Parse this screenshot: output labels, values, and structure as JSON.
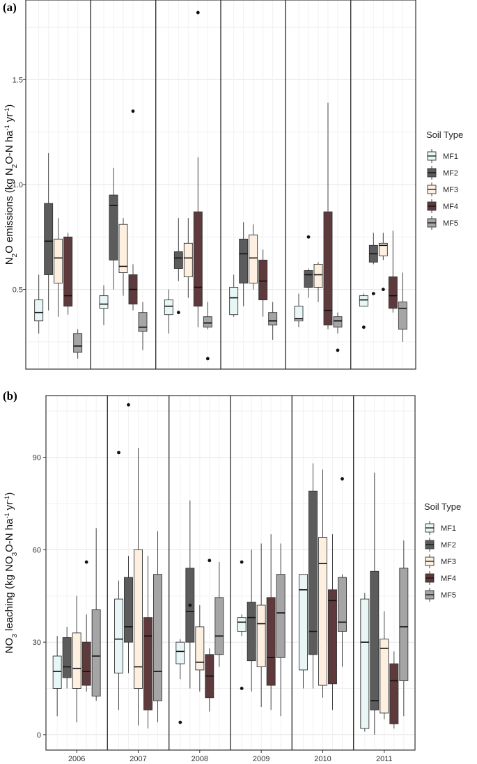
{
  "chart_data": [
    {
      "type": "boxplot",
      "panel_label": "(a)",
      "ylabel_parts": [
        "N",
        "2",
        "O emissions (kg N",
        "2",
        "O-N ha",
        "-1",
        " yr",
        "-1",
        ")"
      ],
      "ylim": [
        0.12,
        1.88
      ],
      "yticks": [
        "0.5",
        "1.0",
        "1.5"
      ],
      "ytick_values": [
        0.5,
        1.0,
        1.5
      ],
      "categories": [
        "2006",
        "2007",
        "2008",
        "2009",
        "2010",
        "2011"
      ],
      "legend": {
        "title": "Soil Type",
        "entries": [
          "MF1",
          "MF2",
          "MF3",
          "MF4",
          "MF5"
        ]
      },
      "series": [
        {
          "name": "MF1",
          "color": "#e8f6f6",
          "boxes": [
            {
              "year": "2006",
              "min": 0.29,
              "q1": 0.35,
              "median": 0.39,
              "q3": 0.45,
              "max": 0.57,
              "outliers": []
            },
            {
              "year": "2007",
              "min": 0.33,
              "q1": 0.41,
              "median": 0.43,
              "q3": 0.47,
              "max": 0.52,
              "outliers": []
            },
            {
              "year": "2008",
              "min": 0.29,
              "q1": 0.38,
              "median": 0.42,
              "q3": 0.45,
              "max": 0.5,
              "outliers": []
            },
            {
              "year": "2009",
              "min": 0.37,
              "q1": 0.38,
              "median": 0.46,
              "q3": 0.51,
              "max": 0.57,
              "outliers": []
            },
            {
              "year": "2010",
              "min": 0.32,
              "q1": 0.35,
              "median": 0.36,
              "q3": 0.42,
              "max": 0.48,
              "outliers": []
            },
            {
              "year": "2011",
              "min": 0.42,
              "q1": 0.42,
              "median": 0.45,
              "q3": 0.47,
              "max": 0.48,
              "outliers": [
                0.32
              ]
            }
          ]
        },
        {
          "name": "MF2",
          "color": "#5c5c5c",
          "boxes": [
            {
              "year": "2006",
              "min": 0.4,
              "q1": 0.57,
              "median": 0.73,
              "q3": 0.91,
              "max": 1.15,
              "outliers": []
            },
            {
              "year": "2007",
              "min": 0.5,
              "q1": 0.64,
              "median": 0.9,
              "q3": 0.95,
              "max": 1.08,
              "outliers": []
            },
            {
              "year": "2008",
              "min": 0.54,
              "q1": 0.6,
              "median": 0.65,
              "q3": 0.68,
              "max": 0.84,
              "outliers": [
                0.39
              ]
            },
            {
              "year": "2009",
              "min": 0.42,
              "q1": 0.53,
              "median": 0.67,
              "q3": 0.74,
              "max": 0.82,
              "outliers": []
            },
            {
              "year": "2010",
              "min": 0.46,
              "q1": 0.51,
              "median": 0.57,
              "q3": 0.59,
              "max": 0.6,
              "outliers": [
                0.75
              ]
            },
            {
              "year": "2011",
              "min": 0.62,
              "q1": 0.63,
              "median": 0.67,
              "q3": 0.71,
              "max": 0.77,
              "outliers": [
                0.48
              ]
            }
          ]
        },
        {
          "name": "MF3",
          "color": "#fdf0e0",
          "boxes": [
            {
              "year": "2006",
              "min": 0.37,
              "q1": 0.53,
              "median": 0.65,
              "q3": 0.74,
              "max": 0.84,
              "outliers": []
            },
            {
              "year": "2007",
              "min": 0.47,
              "q1": 0.58,
              "median": 0.61,
              "q3": 0.81,
              "max": 0.84,
              "outliers": []
            },
            {
              "year": "2008",
              "min": 0.46,
              "q1": 0.56,
              "median": 0.65,
              "q3": 0.72,
              "max": 0.84,
              "outliers": []
            },
            {
              "year": "2009",
              "min": 0.5,
              "q1": 0.53,
              "median": 0.65,
              "q3": 0.76,
              "max": 0.81,
              "outliers": []
            },
            {
              "year": "2010",
              "min": 0.44,
              "q1": 0.51,
              "median": 0.57,
              "q3": 0.62,
              "max": 0.63,
              "outliers": []
            },
            {
              "year": "2011",
              "min": 0.64,
              "q1": 0.66,
              "median": 0.71,
              "q3": 0.72,
              "max": 0.77,
              "outliers": [
                0.5
              ]
            }
          ]
        },
        {
          "name": "MF4",
          "color": "#5e3a3d",
          "boxes": [
            {
              "year": "2006",
              "min": 0.38,
              "q1": 0.42,
              "median": 0.47,
              "q3": 0.75,
              "max": 0.77,
              "outliers": []
            },
            {
              "year": "2007",
              "min": 0.4,
              "q1": 0.43,
              "median": 0.5,
              "q3": 0.57,
              "max": 0.62,
              "outliers": [
                1.35
              ]
            },
            {
              "year": "2008",
              "min": 0.32,
              "q1": 0.42,
              "median": 0.51,
              "q3": 0.87,
              "max": 1.13,
              "outliers": [
                1.82
              ]
            },
            {
              "year": "2009",
              "min": 0.37,
              "q1": 0.45,
              "median": 0.54,
              "q3": 0.64,
              "max": 0.69,
              "outliers": []
            },
            {
              "year": "2010",
              "min": 0.31,
              "q1": 0.33,
              "median": 0.4,
              "q3": 0.87,
              "max": 1.39,
              "outliers": []
            },
            {
              "year": "2011",
              "min": 0.39,
              "q1": 0.41,
              "median": 0.47,
              "q3": 0.56,
              "max": 0.78,
              "outliers": []
            }
          ]
        },
        {
          "name": "MF5",
          "color": "#a5a5a5",
          "boxes": [
            {
              "year": "2006",
              "min": 0.17,
              "q1": 0.2,
              "median": 0.23,
              "q3": 0.29,
              "max": 0.31,
              "outliers": []
            },
            {
              "year": "2007",
              "min": 0.21,
              "q1": 0.3,
              "median": 0.32,
              "q3": 0.39,
              "max": 0.44,
              "outliers": []
            },
            {
              "year": "2008",
              "min": 0.31,
              "q1": 0.32,
              "median": 0.34,
              "q3": 0.37,
              "max": 0.44,
              "outliers": [
                0.17
              ]
            },
            {
              "year": "2009",
              "min": 0.26,
              "q1": 0.33,
              "median": 0.35,
              "q3": 0.39,
              "max": 0.44,
              "outliers": []
            },
            {
              "year": "2010",
              "min": 0.29,
              "q1": 0.32,
              "median": 0.35,
              "q3": 0.37,
              "max": 0.39,
              "outliers": [
                0.21
              ]
            },
            {
              "year": "2011",
              "min": 0.25,
              "q1": 0.31,
              "median": 0.41,
              "q3": 0.44,
              "max": 0.58,
              "outliers": []
            }
          ]
        }
      ]
    },
    {
      "type": "boxplot",
      "panel_label": "(b)",
      "ylabel_parts": [
        "NO",
        "3",
        " leaching (kg NO",
        "3",
        "O-N ha",
        "-1",
        " yr",
        "-1",
        ")"
      ],
      "ylim": [
        -5,
        110
      ],
      "yticks": [
        "0",
        "30",
        "60",
        "90"
      ],
      "ytick_values": [
        0,
        30,
        60,
        90
      ],
      "categories": [
        "2006",
        "2007",
        "2008",
        "2009",
        "2010",
        "2011"
      ],
      "legend": {
        "title": "Soil Type",
        "entries": [
          "MF1",
          "MF2",
          "MF3",
          "MF4",
          "MF5"
        ]
      },
      "series": [
        {
          "name": "MF1",
          "color": "#e8f6f6",
          "boxes": [
            {
              "year": "2006",
              "min": 6,
              "q1": 15,
              "median": 20.5,
              "q3": 25.5,
              "max": 32,
              "outliers": []
            },
            {
              "year": "2007",
              "min": 8,
              "q1": 20,
              "median": 31,
              "q3": 44,
              "max": 50,
              "outliers": [
                91.5
              ]
            },
            {
              "year": "2008",
              "min": 18,
              "q1": 23,
              "median": 27,
              "q3": 30,
              "max": 31,
              "outliers": [
                4
              ]
            },
            {
              "year": "2009",
              "min": 32,
              "q1": 33.5,
              "median": 36.5,
              "q3": 38,
              "max": 39,
              "outliers": [
                56,
                15
              ]
            },
            {
              "year": "2010",
              "min": 15,
              "q1": 21,
              "median": 47,
              "q3": 52,
              "max": 52,
              "outliers": []
            },
            {
              "year": "2011",
              "min": 1,
              "q1": 2,
              "median": 30,
              "q3": 44,
              "max": 46,
              "outliers": []
            }
          ]
        },
        {
          "name": "MF2",
          "color": "#5c5c5c",
          "boxes": [
            {
              "year": "2006",
              "min": 15,
              "q1": 18.5,
              "median": 22,
              "q3": 31.5,
              "max": 35,
              "outliers": []
            },
            {
              "year": "2007",
              "min": 20,
              "q1": 30,
              "median": 35,
              "q3": 51,
              "max": 58,
              "outliers": [
                107
              ]
            },
            {
              "year": "2008",
              "min": 15,
              "q1": 30,
              "median": 40,
              "q3": 54,
              "max": 76,
              "outliers": [
                42
              ]
            },
            {
              "year": "2009",
              "min": 14,
              "q1": 24,
              "median": 38,
              "q3": 43,
              "max": 60,
              "outliers": []
            },
            {
              "year": "2010",
              "min": 15,
              "q1": 26,
              "median": 33.5,
              "q3": 79,
              "max": 88,
              "outliers": []
            },
            {
              "year": "2011",
              "min": 0,
              "q1": 8,
              "median": 11,
              "q3": 53,
              "max": 85,
              "outliers": []
            }
          ]
        },
        {
          "name": "MF3",
          "color": "#fdf0e0",
          "boxes": [
            {
              "year": "2006",
              "min": 4,
              "q1": 15,
              "median": 21.5,
              "q3": 33,
              "max": 45,
              "outliers": []
            },
            {
              "year": "2007",
              "min": 3,
              "q1": 15,
              "median": 22,
              "q3": 60,
              "max": 93,
              "outliers": []
            },
            {
              "year": "2008",
              "min": 14,
              "q1": 21,
              "median": 23.5,
              "q3": 35,
              "max": 42,
              "outliers": []
            },
            {
              "year": "2009",
              "min": 9,
              "q1": 22,
              "median": 36,
              "q3": 42,
              "max": 62,
              "outliers": []
            },
            {
              "year": "2010",
              "min": 12,
              "q1": 16,
              "median": 55.5,
              "q3": 64,
              "max": 86,
              "outliers": []
            },
            {
              "year": "2011",
              "min": 5,
              "q1": 7,
              "median": 28,
              "q3": 31,
              "max": 40,
              "outliers": []
            }
          ]
        },
        {
          "name": "MF4",
          "color": "#5e3a3d",
          "boxes": [
            {
              "year": "2006",
              "min": 14,
              "q1": 16,
              "median": 20.5,
              "q3": 30,
              "max": 39,
              "outliers": [
                56
              ]
            },
            {
              "year": "2007",
              "min": 2,
              "q1": 8,
              "median": 32,
              "q3": 38,
              "max": 58,
              "outliers": []
            },
            {
              "year": "2008",
              "min": 7.5,
              "q1": 12,
              "median": 19,
              "q3": 26,
              "max": 28,
              "outliers": [
                56.5
              ]
            },
            {
              "year": "2009",
              "min": 8,
              "q1": 16,
              "median": 25,
              "q3": 44.5,
              "max": 65,
              "outliers": []
            },
            {
              "year": "2010",
              "min": 8,
              "q1": 16.5,
              "median": 43.5,
              "q3": 47,
              "max": 65,
              "outliers": []
            },
            {
              "year": "2011",
              "min": 2,
              "q1": 3.5,
              "median": 17.5,
              "q3": 23,
              "max": 27,
              "outliers": []
            }
          ]
        },
        {
          "name": "MF5",
          "color": "#a5a5a5",
          "boxes": [
            {
              "year": "2006",
              "min": 11,
              "q1": 12.5,
              "median": 25.5,
              "q3": 40.5,
              "max": 67,
              "outliers": []
            },
            {
              "year": "2007",
              "min": 4,
              "q1": 11,
              "median": 20.5,
              "q3": 52,
              "max": 66,
              "outliers": []
            },
            {
              "year": "2008",
              "min": 22,
              "q1": 26,
              "median": 32,
              "q3": 44.5,
              "max": 56,
              "outliers": []
            },
            {
              "year": "2009",
              "min": 6,
              "q1": 25,
              "median": 39.5,
              "q3": 52,
              "max": 62,
              "outliers": []
            },
            {
              "year": "2010",
              "min": 22,
              "q1": 33.5,
              "median": 36.5,
              "q3": 51,
              "max": 52,
              "outliers": [
                83
              ]
            },
            {
              "year": "2011",
              "min": 6,
              "q1": 17.5,
              "median": 35,
              "q3": 54,
              "max": 63,
              "outliers": []
            }
          ]
        }
      ]
    }
  ]
}
